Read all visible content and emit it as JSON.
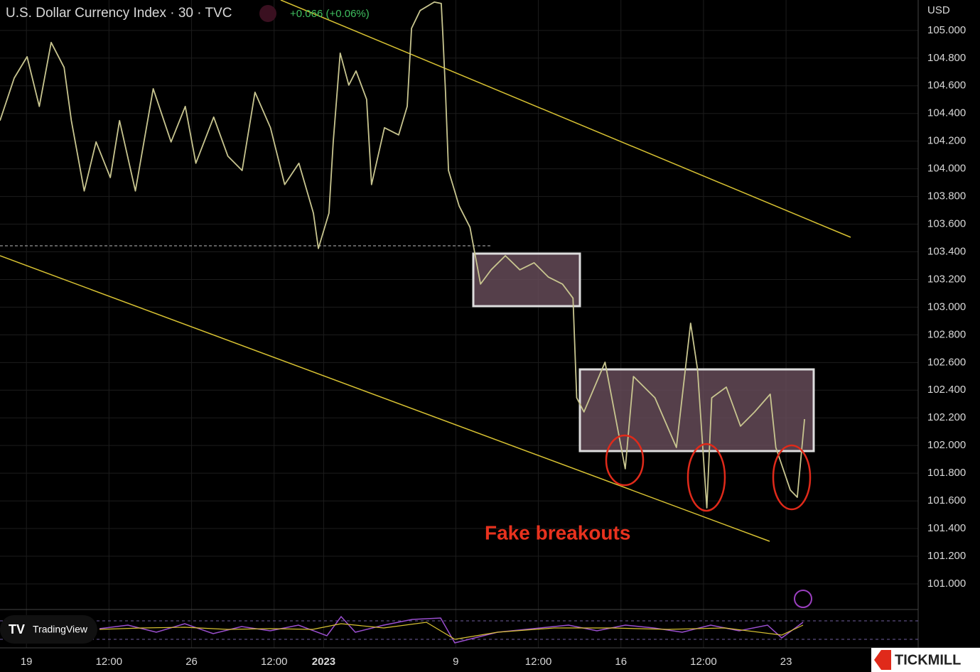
{
  "chart_data": {
    "type": "line",
    "title": "U.S. Dollar Currency Index · 30 · TVC",
    "change_label": "+0.066 (+0.06%)",
    "currency": "USD",
    "annotation": "Fake breakouts",
    "watermark": "TradingView",
    "brand": "TICKMILL",
    "color": "#c8c58f",
    "grid": true,
    "x": [
      -0.8,
      -0.37,
      0.02,
      0.39,
      0.75,
      1.14,
      1.36,
      1.75,
      2.11,
      2.54,
      2.82,
      3.3,
      3.84,
      4.38,
      4.81,
      5.13,
      5.67,
      6.1,
      6.53,
      6.92,
      7.39,
      7.82,
      8.25,
      8.69,
      8.84,
      9.16,
      9.29,
      9.5,
      9.76,
      9.98,
      10.3,
      10.45,
      10.84,
      11.27,
      11.53,
      11.66,
      11.92,
      12.35,
      12.56,
      12.61,
      12.69,
      12.78,
      13.1,
      13.43,
      13.53,
      13.75,
      14.07,
      14.5,
      14.94,
      15.37,
      15.8,
      16.23,
      16.55,
      16.66,
      16.88,
      17.52,
      18.13,
      18.38,
      19.03,
      19.68,
      20.11,
      20.32,
      20.6,
      20.75,
      21.19,
      21.62,
      22.05,
      22.52,
      22.69,
      23.13,
      23.34,
      23.56
    ],
    "values": [
      104.348,
      104.656,
      104.81,
      104.451,
      104.913,
      104.733,
      104.348,
      103.84,
      104.194,
      103.937,
      104.348,
      103.84,
      104.579,
      104.194,
      104.451,
      104.04,
      104.374,
      104.091,
      103.988,
      104.553,
      104.297,
      103.886,
      104.04,
      103.68,
      103.424,
      103.68,
      104.194,
      104.836,
      104.605,
      104.707,
      104.502,
      103.886,
      104.297,
      104.245,
      104.451,
      105.015,
      105.144,
      105.205,
      105.195,
      104.964,
      104.553,
      103.988,
      103.732,
      103.578,
      103.449,
      103.167,
      103.27,
      103.372,
      103.27,
      103.321,
      103.218,
      103.167,
      103.065,
      102.345,
      102.243,
      102.602,
      101.832,
      102.499,
      102.345,
      101.986,
      102.884,
      102.551,
      101.549,
      102.345,
      102.422,
      102.14,
      102.243,
      102.371,
      101.986,
      101.678,
      101.626,
      102.191
    ],
    "xlim": [
      -0.8,
      27
    ],
    "xticks": [
      {
        "value": 0,
        "label": "19"
      },
      {
        "value": 2.5,
        "label": "12:00"
      },
      {
        "value": 5,
        "label": "26"
      },
      {
        "value": 7.5,
        "label": "12:00"
      },
      {
        "value": 9,
        "label": "2023"
      },
      {
        "value": 13,
        "label": "9"
      },
      {
        "value": 15.5,
        "label": "12:00"
      },
      {
        "value": 18,
        "label": "16"
      },
      {
        "value": 20.5,
        "label": "12:00"
      },
      {
        "value": 23,
        "label": "23"
      }
    ],
    "ylim": [
      100.815,
      105.22
    ],
    "yticks": [
      {
        "value": 101,
        "label": "101.000"
      },
      {
        "value": 101.2,
        "label": "101.200"
      },
      {
        "value": 101.4,
        "label": "101.400"
      },
      {
        "value": 101.6,
        "label": "101.600"
      },
      {
        "value": 101.8,
        "label": "101.800"
      },
      {
        "value": 102,
        "label": "102.000"
      },
      {
        "value": 102.2,
        "label": "102.200"
      },
      {
        "value": 102.4,
        "label": "102.400"
      },
      {
        "value": 102.6,
        "label": "102.600"
      },
      {
        "value": 102.8,
        "label": "102.800"
      },
      {
        "value": 103,
        "label": "103.000"
      },
      {
        "value": 103.2,
        "label": "103.200"
      },
      {
        "value": 103.4,
        "label": "103.400"
      },
      {
        "value": 103.6,
        "label": "103.600"
      },
      {
        "value": 103.8,
        "label": "103.800"
      },
      {
        "value": 104,
        "label": "104.000"
      },
      {
        "value": 104.2,
        "label": "104.200"
      },
      {
        "value": 104.4,
        "label": "104.400"
      },
      {
        "value": 104.6,
        "label": "104.600"
      },
      {
        "value": 104.8,
        "label": "104.800"
      },
      {
        "value": 105,
        "label": "105.000"
      }
    ]
  }
}
